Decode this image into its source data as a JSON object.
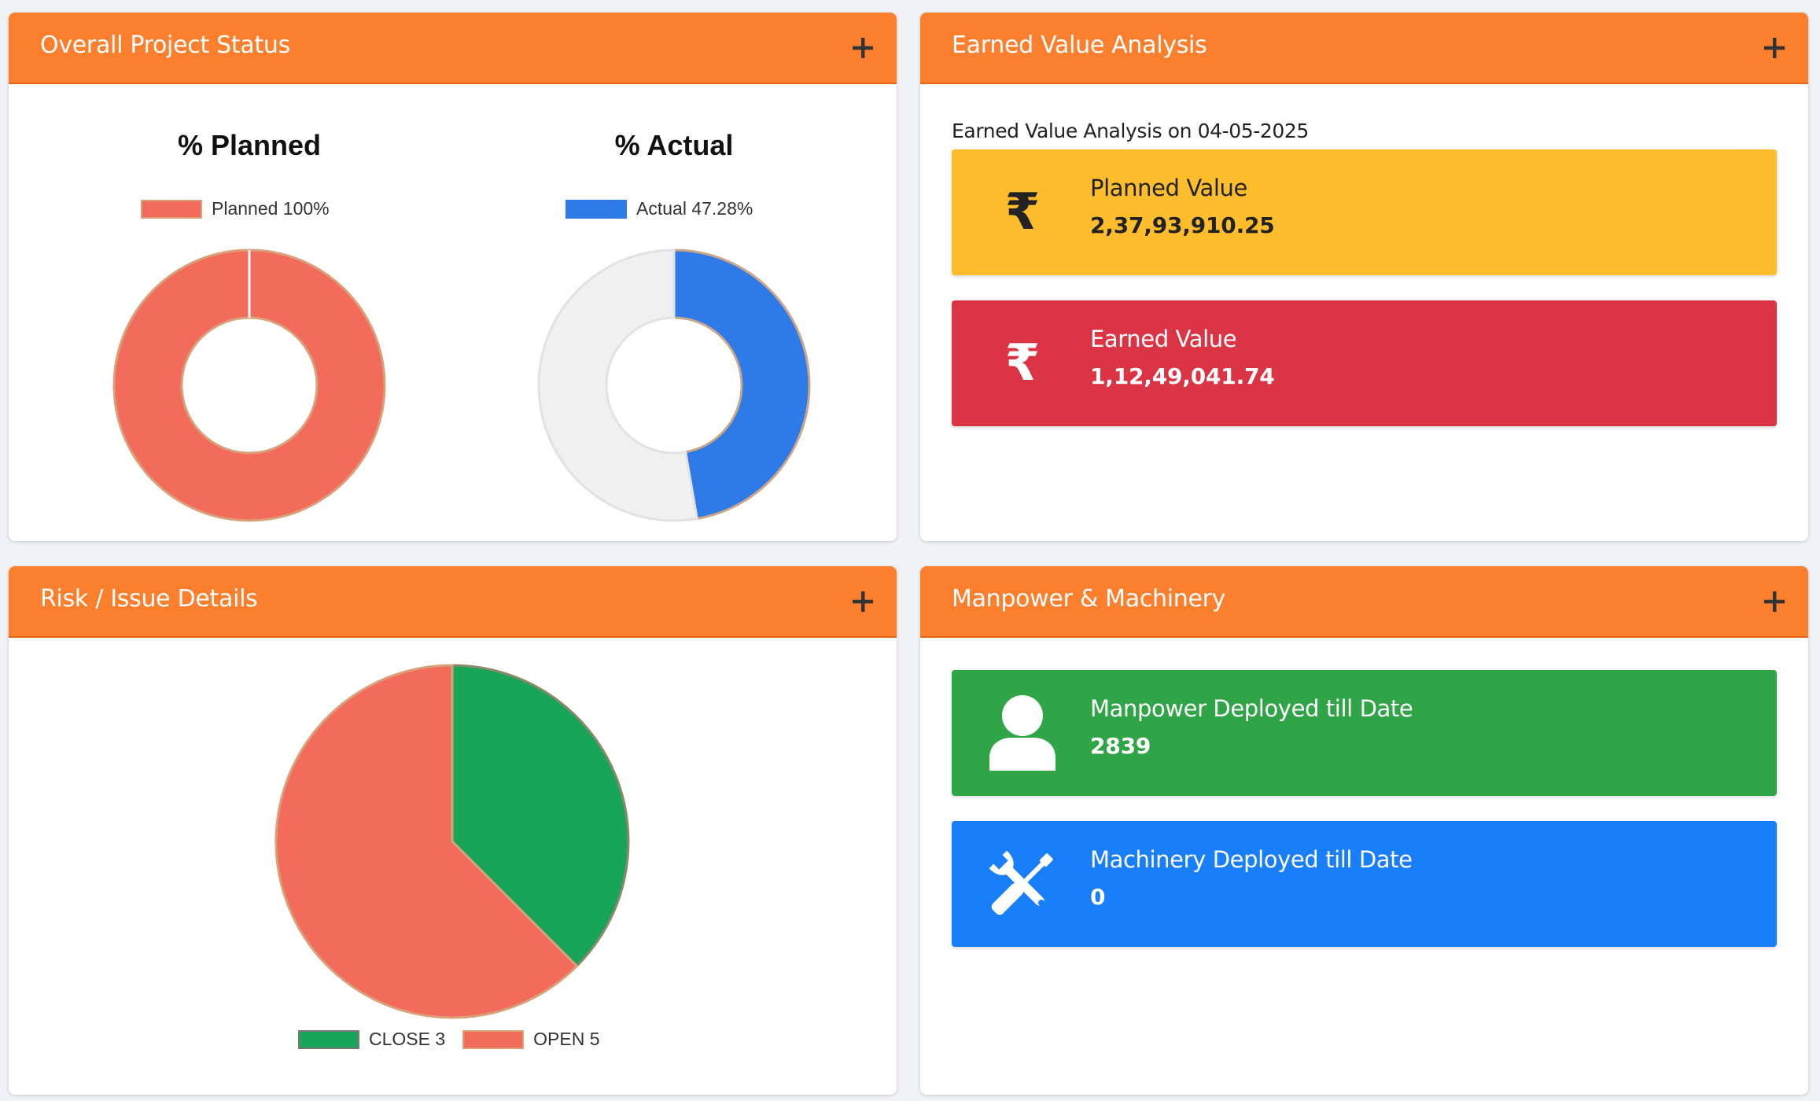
{
  "overall_project_status": {
    "title": "Overall Project Status",
    "expand_icon": "plus-icon",
    "planned_chart": {
      "title": "% Planned",
      "legend_label": "Planned 100%",
      "color": "#f26b5b"
    },
    "actual_chart": {
      "title": "% Actual",
      "legend_label": "Actual 47.28%",
      "color": "#2e7ae6",
      "remainder_color": "#f0f0f0"
    }
  },
  "earned_value_analysis": {
    "title": "Earned Value Analysis",
    "expand_icon": "plus-icon",
    "caption": "Earned Value Analysis on 04-05-2025",
    "planned_value": {
      "label": "Planned Value",
      "value": "2,37,93,910.25",
      "icon": "rupee-icon",
      "color": "#fdbd2d"
    },
    "earned_value": {
      "label": "Earned Value",
      "value": "1,12,49,041.74",
      "icon": "rupee-icon",
      "color": "#db3545"
    }
  },
  "risk_issue_details": {
    "title": "Risk / Issue Details",
    "expand_icon": "plus-icon",
    "legend": [
      {
        "label": "CLOSE 3",
        "color": "#18a55a"
      },
      {
        "label": "OPEN 5",
        "color": "#f26b5b"
      }
    ]
  },
  "manpower_machinery": {
    "title": "Manpower & Machinery",
    "expand_icon": "plus-icon",
    "manpower": {
      "label": "Manpower Deployed till Date",
      "value": "2839",
      "icon": "user-icon",
      "color": "#30a547"
    },
    "machinery": {
      "label": "Machinery Deployed till Date",
      "value": "0",
      "icon": "tools-icon",
      "color": "#187ef9"
    }
  },
  "chart_data": [
    {
      "type": "pie",
      "title": "% Planned",
      "categories": [
        "Planned"
      ],
      "values": [
        100
      ],
      "unit": "%",
      "legend": [
        "Planned 100%"
      ],
      "legend_position": "top"
    },
    {
      "type": "pie",
      "title": "% Actual",
      "categories": [
        "Actual",
        "Remaining"
      ],
      "values": [
        47.28,
        52.72
      ],
      "unit": "%",
      "legend": [
        "Actual 47.28%"
      ],
      "legend_position": "top"
    },
    {
      "type": "pie",
      "title": "",
      "categories": [
        "CLOSE",
        "OPEN"
      ],
      "values": [
        3,
        5
      ],
      "legend": [
        "CLOSE 3",
        "OPEN 5"
      ],
      "legend_position": "bottom"
    }
  ]
}
